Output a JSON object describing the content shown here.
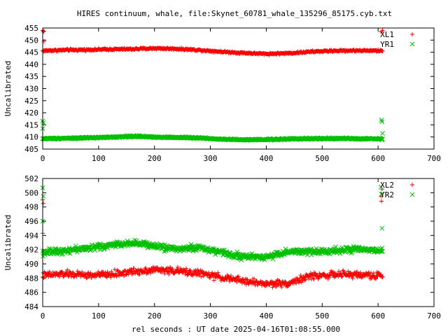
{
  "figure": {
    "title": "HIRES continuum, whale, file:Skynet_60781_whale_135296_85175.cyb.txt",
    "xlabel": "rel seconds : UT date 2025-04-16T01:08:55.000"
  },
  "chart_data": [
    {
      "type": "scatter",
      "ylabel": "Uncalibrated",
      "xlim": [
        0,
        700
      ],
      "ylim": [
        405,
        455
      ],
      "x_ticks": [
        0,
        100,
        200,
        300,
        400,
        500,
        600,
        700
      ],
      "y_ticks": [
        405,
        410,
        415,
        420,
        425,
        430,
        435,
        440,
        445,
        450,
        455
      ],
      "legend_position": "top-right",
      "series": [
        {
          "name": "XL1",
          "marker": "+",
          "color": "#ff0000",
          "x_range": [
            0,
            608
          ],
          "profile_x": [
            0,
            40,
            80,
            120,
            160,
            200,
            240,
            280,
            320,
            360,
            400,
            440,
            480,
            520,
            560,
            608
          ],
          "profile_y": [
            445.6,
            445.9,
            446.0,
            446.2,
            446.3,
            446.6,
            446.4,
            445.9,
            445.2,
            444.7,
            444.3,
            444.6,
            445.2,
            445.6,
            445.7,
            445.6
          ],
          "spread": 0.6,
          "outliers": [
            [
              0,
              454
            ],
            [
              1,
              453.5
            ],
            [
              2,
              453.7
            ],
            [
              605,
              453.5
            ],
            [
              608,
              454
            ],
            [
              2,
              449.5
            ]
          ]
        },
        {
          "name": "YR1",
          "marker": "x",
          "color": "#00c000",
          "x_range": [
            0,
            608
          ],
          "profile_x": [
            0,
            40,
            80,
            120,
            160,
            200,
            240,
            280,
            320,
            360,
            400,
            440,
            480,
            520,
            560,
            608
          ],
          "profile_y": [
            409.3,
            409.5,
            409.6,
            409.9,
            410.3,
            410.0,
            409.8,
            409.6,
            409.1,
            408.8,
            408.9,
            409.2,
            409.3,
            409.4,
            409.3,
            409.2
          ],
          "spread": 0.5,
          "outliers": [
            [
              0,
              416.5
            ],
            [
              1,
              415.8
            ],
            [
              0,
              413.5
            ],
            [
              606,
              417
            ],
            [
              607,
              416.3
            ],
            [
              608,
              411.5
            ]
          ]
        }
      ]
    },
    {
      "type": "scatter",
      "ylabel": "Uncalibrated",
      "xlim": [
        0,
        700
      ],
      "ylim": [
        484,
        502
      ],
      "x_ticks": [
        0,
        100,
        200,
        300,
        400,
        500,
        600,
        700
      ],
      "y_ticks": [
        484,
        486,
        488,
        490,
        492,
        494,
        496,
        498,
        500,
        502
      ],
      "legend_position": "top-right",
      "series": [
        {
          "name": "XL2",
          "marker": "+",
          "color": "#ff0000",
          "x_range": [
            0,
            608
          ],
          "profile_x": [
            0,
            40,
            80,
            120,
            160,
            200,
            240,
            280,
            320,
            360,
            400,
            440,
            480,
            520,
            560,
            608
          ],
          "profile_y": [
            488.4,
            488.6,
            488.4,
            488.5,
            488.9,
            489.2,
            489.0,
            488.7,
            488.1,
            487.6,
            487.2,
            487.3,
            488.3,
            488.5,
            488.5,
            488.3
          ],
          "spread": 0.7,
          "outliers": [
            [
              0,
              499
            ],
            [
              1,
              498.5
            ],
            [
              0,
              494.3
            ],
            [
              605,
              499.5
            ],
            [
              606,
              498.8
            ],
            [
              607,
              500.5
            ]
          ]
        },
        {
          "name": "YR2",
          "marker": "x",
          "color": "#00c000",
          "x_range": [
            0,
            608
          ],
          "profile_x": [
            0,
            40,
            80,
            120,
            160,
            200,
            240,
            280,
            320,
            360,
            400,
            440,
            480,
            520,
            560,
            608
          ],
          "profile_y": [
            491.6,
            491.9,
            492.2,
            492.6,
            493.0,
            492.5,
            492.1,
            492.3,
            491.6,
            491.0,
            491.0,
            491.7,
            491.7,
            491.9,
            492.0,
            491.8
          ],
          "spread": 0.6,
          "outliers": [
            [
              0,
              500.7
            ],
            [
              1,
              499.5
            ],
            [
              0,
              496
            ],
            [
              605,
              500.8
            ],
            [
              606,
              499.8
            ],
            [
              607,
              495
            ]
          ]
        }
      ]
    }
  ]
}
